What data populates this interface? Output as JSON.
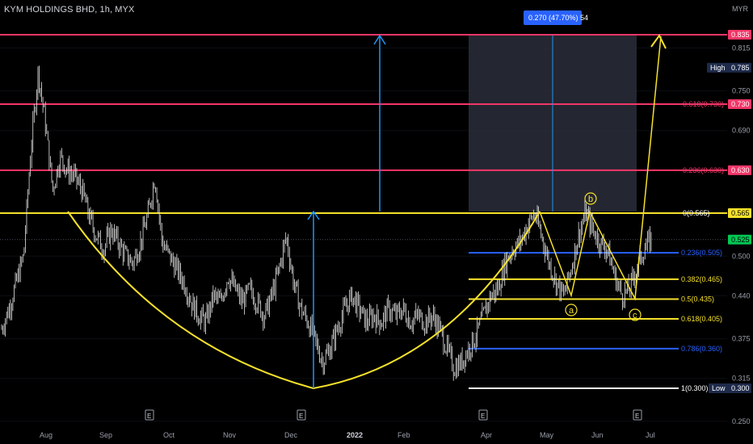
{
  "header": {
    "title": "KYM HOLDINGS BHD, 1h, MYX",
    "currency": "MYR"
  },
  "measure_label": "0.270 (47.70%) 54",
  "colors": {
    "background": "#000000",
    "resistance": "#f23668",
    "neckline": "#f5e12a",
    "fib": "#f5e12a",
    "fib_blue": "#2962ff",
    "arrow_blue": "#2196f3",
    "measure_box": "#2a2e39",
    "current_price": "#00c853",
    "high_badge": "#1e2a4a",
    "low_badge": "#1e2a4a"
  },
  "icons": {
    "earnings": "E-marker",
    "arrow": "arrow-up-icon"
  },
  "chart_data": {
    "type": "line",
    "title": "KYM HOLDINGS BHD, 1h, MYX",
    "ylabel": "MYR",
    "ylim": [
      0.25,
      0.85
    ],
    "x_ticks": [
      "Aug",
      "Sep",
      "Oct",
      "Nov",
      "Dec",
      "2022",
      "Feb",
      "Apr",
      "May",
      "Jun",
      "Jul"
    ],
    "y_ticks": [
      0.815,
      0.75,
      0.69,
      0.565,
      0.5,
      0.44,
      0.375,
      0.315,
      0.25
    ],
    "series": [
      {
        "values": [
          0.39,
          0.42,
          0.46,
          0.5,
          0.66,
          0.78,
          0.7,
          0.6,
          0.65,
          0.63,
          0.62,
          0.6,
          0.56,
          0.53,
          0.51,
          0.54,
          0.52,
          0.5,
          0.49,
          0.52,
          0.56,
          0.62,
          0.52,
          0.5,
          0.48,
          0.46,
          0.43,
          0.41,
          0.4,
          0.44,
          0.43,
          0.47,
          0.45,
          0.43,
          0.45,
          0.43,
          0.41,
          0.44,
          0.48,
          0.53,
          0.46,
          0.42,
          0.4,
          0.37,
          0.34,
          0.36,
          0.39,
          0.42,
          0.44,
          0.42,
          0.4,
          0.41,
          0.4,
          0.42,
          0.41,
          0.42,
          0.4,
          0.41,
          0.4,
          0.41,
          0.39,
          0.36,
          0.33,
          0.34,
          0.36,
          0.38,
          0.41,
          0.44,
          0.45,
          0.49,
          0.51,
          0.52,
          0.545,
          0.565,
          0.53,
          0.49,
          0.46,
          0.44,
          0.48,
          0.53,
          0.565,
          0.54,
          0.52,
          0.51,
          0.47,
          0.44,
          0.45,
          0.48,
          0.51,
          0.525
        ]
      }
    ],
    "high": {
      "label": "High",
      "value": 0.785
    },
    "low": {
      "label": "Low",
      "value": 0.3
    },
    "current": {
      "value": 0.525,
      "label": "0.525"
    },
    "horizontal_levels": [
      {
        "value": 0.835,
        "label": "0.835",
        "color": "#f23668"
      },
      {
        "value": 0.73,
        "label": "0.730",
        "color": "#f23668"
      },
      {
        "value": 0.63,
        "label": "0.630",
        "color": "#f23668"
      },
      {
        "value": 0.565,
        "label": "0.565",
        "color": "#f5e12a"
      }
    ],
    "fib_upper": [
      {
        "label": "0.618(0.730)",
        "value": 0.73
      },
      {
        "label": "0.236(0.630)",
        "value": 0.63
      },
      {
        "label": "0(0.565)",
        "value": 0.565
      }
    ],
    "fib_lower": [
      {
        "label": "0.236(0.505)",
        "value": 0.505,
        "color": "#2962ff"
      },
      {
        "label": "0.382(0.465)",
        "value": 0.465,
        "color": "#f5e12a"
      },
      {
        "label": "0.5(0.435)",
        "value": 0.435,
        "color": "#f5e12a"
      },
      {
        "label": "0.618(0.405)",
        "value": 0.405,
        "color": "#f5e12a"
      },
      {
        "label": "0.786(0.360)",
        "value": 0.36,
        "color": "#2962ff"
      },
      {
        "label": "1(0.300)",
        "value": 0.3,
        "color": "#ffffff"
      }
    ],
    "waves": [
      {
        "label": "a",
        "value": 0.415
      },
      {
        "label": "b",
        "value": 0.59
      },
      {
        "label": "c",
        "value": 0.405
      }
    ],
    "earnings_markers": [
      "E",
      "E",
      "E",
      "E"
    ]
  }
}
